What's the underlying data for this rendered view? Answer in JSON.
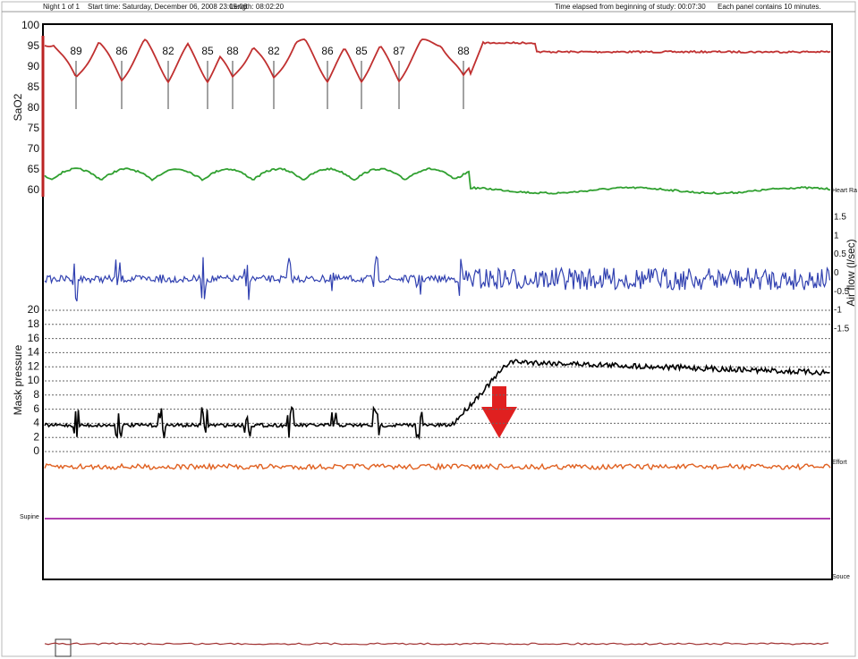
{
  "header": {
    "night": "Night 1 of 1",
    "start": "Start time: Saturday, December 06, 2008 23:05:06",
    "length": "Length: 08:02:20",
    "elapsed": "Time elapsed from beginning of study: 00:07:30",
    "panel": "Each panel contains 10 minutes."
  },
  "sao2": {
    "label": "SaO2",
    "ticks": [
      "100",
      "95",
      "90",
      "85",
      "80",
      "75",
      "70",
      "65",
      "60"
    ],
    "desat_labels": [
      "89",
      "86",
      "82",
      "85",
      "88",
      "82",
      "86",
      "85",
      "87",
      "88"
    ]
  },
  "heart_rate": {
    "label": "Heart Ra"
  },
  "airflow": {
    "label": "Air flow (l/sec)",
    "ticks": [
      "1.5",
      "1",
      "0.5",
      "0",
      "-0.5",
      "-1",
      "-1.5"
    ]
  },
  "mask": {
    "label": "Mask pressure",
    "ticks": [
      "20",
      "18",
      "16",
      "14",
      "12",
      "10",
      "8",
      "6",
      "4",
      "2",
      "0"
    ]
  },
  "effort": {
    "label": "Effort"
  },
  "position": {
    "label": "Supine"
  },
  "source": {
    "label": "Souce"
  }
}
